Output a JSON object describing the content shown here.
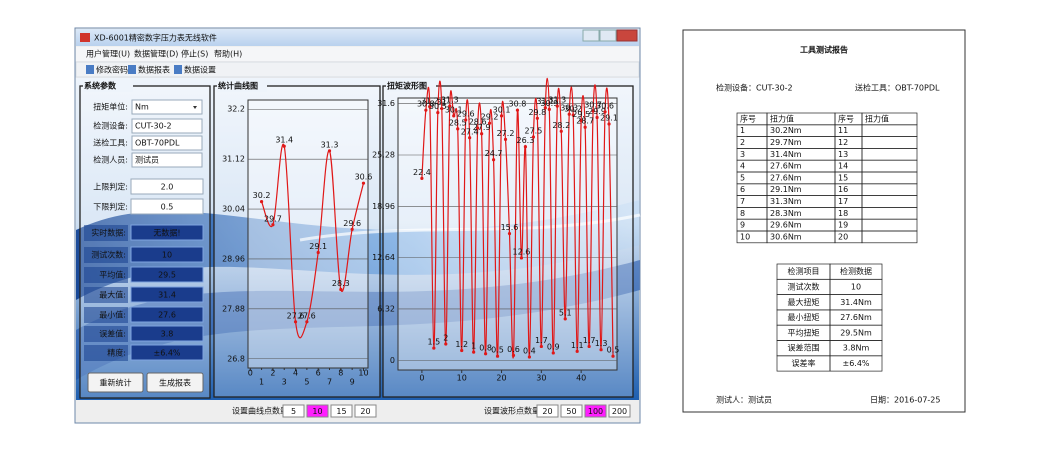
{
  "window": {
    "title": "XD-6001精密数字压力表无线软件",
    "menu": [
      "用户管理(U)",
      "数据管理(D)",
      "停止(S)",
      "帮助(H)"
    ],
    "toolbar": [
      "修改密码",
      "数据报表",
      "数据设置"
    ],
    "params": {
      "title": "系统参数",
      "fields": [
        {
          "label": "扭矩单位:",
          "value": "Nm"
        },
        {
          "label": "检测设备:",
          "value": "CUT-30-2"
        },
        {
          "label": "送检工具:",
          "value": "OBT-70PDL"
        },
        {
          "label": "检测人员:",
          "value": "测试员"
        }
      ],
      "limits": [
        {
          "label": "上限判定:",
          "value": "2.0"
        },
        {
          "label": "下限判定:",
          "value": "0.5"
        }
      ],
      "stats": [
        {
          "label": "实时数据:",
          "value": "无数据!"
        },
        {
          "label": "测试次数:",
          "value": "10"
        },
        {
          "label": "平均值:",
          "value": "29.5"
        },
        {
          "label": "最大值:",
          "value": "31.4"
        },
        {
          "label": "最小值:",
          "value": "27.6"
        },
        {
          "label": "误差值:",
          "value": "3.8"
        },
        {
          "label": "精度:",
          "value": "±6.4%"
        }
      ],
      "buttons": [
        "重新统计",
        "生成报表"
      ]
    },
    "curve_setting": {
      "label": "设置曲线点数量:",
      "options": [
        "5",
        "10",
        "15",
        "20"
      ],
      "selected": 1
    },
    "wave_setting": {
      "label": "设置波形点数量:",
      "options": [
        "20",
        "50",
        "100",
        "200"
      ],
      "selected": 2
    }
  },
  "chart_data": [
    {
      "type": "line",
      "title": "统计曲线图",
      "x": [
        1,
        2,
        3,
        4,
        5,
        6,
        7,
        8,
        9,
        10
      ],
      "values": [
        30.2,
        29.7,
        31.4,
        27.6,
        27.6,
        29.1,
        31.3,
        28.3,
        29.6,
        30.6
      ],
      "color": "#e01818",
      "xlim": [
        -0.2,
        10.4
      ],
      "ylim": [
        26.6,
        32.4
      ],
      "xticks": [
        0,
        2,
        4,
        6,
        8,
        10
      ],
      "xticks_minor": [
        1,
        3,
        5,
        7,
        9
      ],
      "yticks": [
        26.8,
        27.88,
        28.96,
        30.04,
        31.12,
        32.2
      ],
      "grid": true
    },
    {
      "type": "line",
      "title": "扭矩波形图",
      "x": [
        0,
        1,
        2,
        3,
        4,
        5,
        6,
        7,
        8,
        9,
        10,
        11,
        12,
        13,
        14,
        15,
        16,
        17,
        18,
        19,
        20,
        21,
        22,
        23,
        24,
        25,
        26,
        27,
        28,
        29,
        30,
        31,
        32,
        33,
        34,
        35,
        36,
        37,
        38,
        39,
        40,
        41,
        42,
        43,
        44,
        45,
        46,
        47,
        48
      ],
      "values": [
        22.4,
        30.8,
        31.2,
        1.5,
        30.5,
        31.0,
        2.0,
        31.3,
        30.1,
        28.5,
        1.2,
        29.6,
        27.4,
        1.0,
        28.6,
        27.9,
        0.8,
        29.2,
        24.7,
        0.5,
        30.1,
        27.2,
        15.6,
        0.6,
        30.8,
        12.6,
        26.3,
        0.4,
        27.5,
        29.8,
        1.7,
        31.1,
        30.9,
        0.9,
        31.3,
        28.2,
        5.1,
        30.3,
        30.2,
        1.1,
        29.5,
        28.7,
        1.7,
        30.7,
        29.9,
        1.3,
        30.6,
        29.1,
        0.5
      ],
      "color": "#e01818",
      "xlim": [
        -6,
        49
      ],
      "ylim": [
        -1.2,
        32.3
      ],
      "xticks": [
        0,
        10,
        20,
        30,
        40
      ],
      "yticks": [
        0,
        6.32,
        12.64,
        18.96,
        25.28,
        31.6
      ],
      "grid": true
    }
  ],
  "report": {
    "title": "工具测试报告",
    "device": "检测设备：CUT-30-2",
    "tool": "送检工具：OBT-70PDL",
    "table": {
      "header": [
        "序号",
        "扭力值",
        "序号",
        "扭力值"
      ],
      "rows": [
        [
          "1",
          "30.2Nm",
          "11"
        ],
        [
          "2",
          "29.7Nm",
          "12"
        ],
        [
          "3",
          "31.4Nm",
          "13"
        ],
        [
          "4",
          "27.6Nm",
          "14"
        ],
        [
          "5",
          "27.6Nm",
          "15"
        ],
        [
          "6",
          "29.1Nm",
          "16"
        ],
        [
          "7",
          "31.3Nm",
          "17"
        ],
        [
          "8",
          "28.3Nm",
          "18"
        ],
        [
          "9",
          "29.6Nm",
          "19"
        ],
        [
          "10",
          "30.6Nm",
          "20"
        ]
      ]
    },
    "summary": {
      "header": [
        "检测项目",
        "检测数据"
      ],
      "rows": [
        [
          "测试次数",
          "10"
        ],
        [
          "最大扭矩",
          "31.4Nm"
        ],
        [
          "最小扭矩",
          "27.6Nm"
        ],
        [
          "平均扭矩",
          "29.5Nm"
        ],
        [
          "误差范围",
          "3.8Nm"
        ],
        [
          "误差率",
          "±6.4%"
        ]
      ]
    },
    "tester": "测试人：测试员",
    "date": "日期：2016-07-25"
  }
}
